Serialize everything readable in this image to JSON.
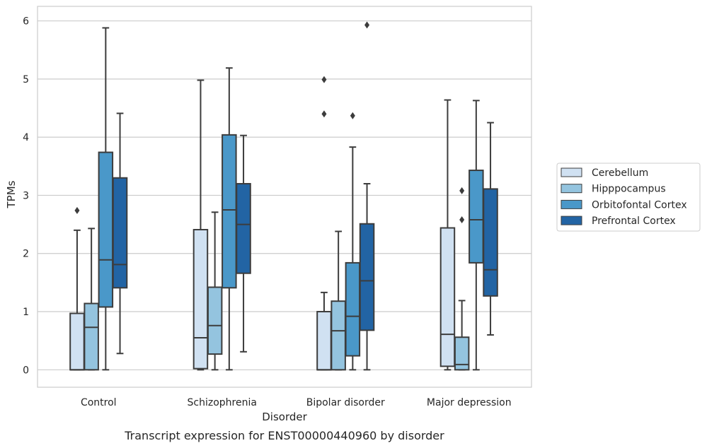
{
  "chart_data": {
    "type": "box",
    "caption": "Transcript expression for ENST00000440960 by disorder",
    "xlabel": "Disorder",
    "ylabel": "TPMs",
    "ylim": [
      -0.3,
      6.25
    ],
    "yticks": [
      0,
      1,
      2,
      3,
      4,
      5,
      6
    ],
    "grid": true,
    "legend_position": "right",
    "categories": [
      "Control",
      "Schizophrenia",
      "Bipolar disorder",
      "Major depression"
    ],
    "series": [
      {
        "name": "Cerebellum",
        "color": "#d0e1f2",
        "boxes": [
          {
            "whislo": 0.0,
            "q1": 0.0,
            "med": 0.0,
            "q3": 0.97,
            "whishi": 2.4,
            "fliers": [
              2.74
            ]
          },
          {
            "whislo": 0.0,
            "q1": 0.02,
            "med": 0.55,
            "q3": 2.41,
            "whishi": 4.98,
            "fliers": []
          },
          {
            "whislo": 0.0,
            "q1": 0.0,
            "med": 0.0,
            "q3": 1.0,
            "whishi": 1.33,
            "fliers": [
              4.4,
              4.99
            ]
          },
          {
            "whislo": 0.0,
            "q1": 0.06,
            "med": 0.61,
            "q3": 2.44,
            "whishi": 4.64,
            "fliers": []
          }
        ]
      },
      {
        "name": "Hipppocampus",
        "color": "#94c4df",
        "boxes": [
          {
            "whislo": 0.0,
            "q1": 0.0,
            "med": 0.73,
            "q3": 1.14,
            "whishi": 2.43,
            "fliers": []
          },
          {
            "whislo": 0.0,
            "q1": 0.27,
            "med": 0.76,
            "q3": 1.42,
            "whishi": 2.71,
            "fliers": []
          },
          {
            "whislo": 0.0,
            "q1": 0.0,
            "med": 0.67,
            "q3": 1.18,
            "whishi": 2.38,
            "fliers": []
          },
          {
            "whislo": 0.0,
            "q1": 0.0,
            "med": 0.09,
            "q3": 0.56,
            "whishi": 1.19,
            "fliers": [
              2.58,
              3.08
            ]
          }
        ]
      },
      {
        "name": "Orbitofontal Cortex",
        "color": "#4a98c9",
        "boxes": [
          {
            "whislo": 0.0,
            "q1": 1.08,
            "med": 1.89,
            "q3": 3.74,
            "whishi": 5.88,
            "fliers": []
          },
          {
            "whislo": 0.0,
            "q1": 1.41,
            "med": 2.75,
            "q3": 4.04,
            "whishi": 5.19,
            "fliers": []
          },
          {
            "whislo": 0.0,
            "q1": 0.24,
            "med": 0.92,
            "q3": 1.84,
            "whishi": 3.83,
            "fliers": [
              4.37
            ]
          },
          {
            "whislo": 0.0,
            "q1": 1.84,
            "med": 2.58,
            "q3": 3.43,
            "whishi": 4.63,
            "fliers": []
          }
        ]
      },
      {
        "name": "Prefrontal Cortex",
        "color": "#2264a4",
        "boxes": [
          {
            "whislo": 0.28,
            "q1": 1.41,
            "med": 1.81,
            "q3": 3.3,
            "whishi": 4.41,
            "fliers": []
          },
          {
            "whislo": 0.31,
            "q1": 1.66,
            "med": 2.5,
            "q3": 3.2,
            "whishi": 4.03,
            "fliers": []
          },
          {
            "whislo": 0.0,
            "q1": 0.68,
            "med": 1.53,
            "q3": 2.51,
            "whishi": 3.2,
            "fliers": [
              5.93
            ]
          },
          {
            "whislo": 0.6,
            "q1": 1.27,
            "med": 1.72,
            "q3": 3.11,
            "whishi": 4.25,
            "fliers": []
          }
        ]
      }
    ]
  }
}
